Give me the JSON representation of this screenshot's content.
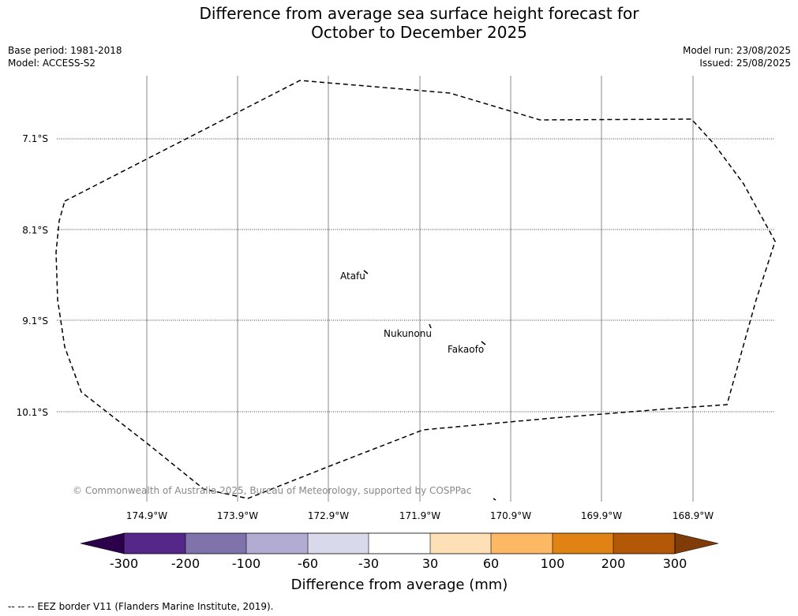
{
  "title_line1": "Difference from average sea surface height forecast for",
  "title_line2": "October to December 2025",
  "base_period": "Base period: 1981-2018",
  "model": "Model: ACCESS-S2",
  "model_run": "Model run: 23/08/2025",
  "issued": "Issued: 25/08/2025",
  "lat_labels": [
    "7.1°S",
    "8.1°S",
    "9.1°S",
    "10.1°S"
  ],
  "lon_labels": [
    "174.9°W",
    "173.9°W",
    "172.9°W",
    "171.9°W",
    "170.9°W",
    "169.9°W",
    "168.9°W"
  ],
  "places": {
    "atafu": "Atafu",
    "nukunonu": "Nukunonu",
    "fakaofo": "Fakaofo"
  },
  "copyright": "© Commonwealth of Australia 2025, Bureau of Meteorology, supported by COSPPac",
  "colorbar": {
    "ticks": [
      "-300",
      "-200",
      "-100",
      "-60",
      "-30",
      "30",
      "60",
      "100",
      "200",
      "300"
    ],
    "colors": [
      "#2d004b",
      "#542788",
      "#8073ac",
      "#b2abd2",
      "#d8daeb",
      "#ffffff",
      "#fee0b6",
      "#fdb863",
      "#e08214",
      "#b35806",
      "#7f3b08"
    ],
    "title": "Difference from average (mm)"
  },
  "legend_text": "--  --  -- EEZ border V11 (Flanders Marine Institute, 2019)."
}
